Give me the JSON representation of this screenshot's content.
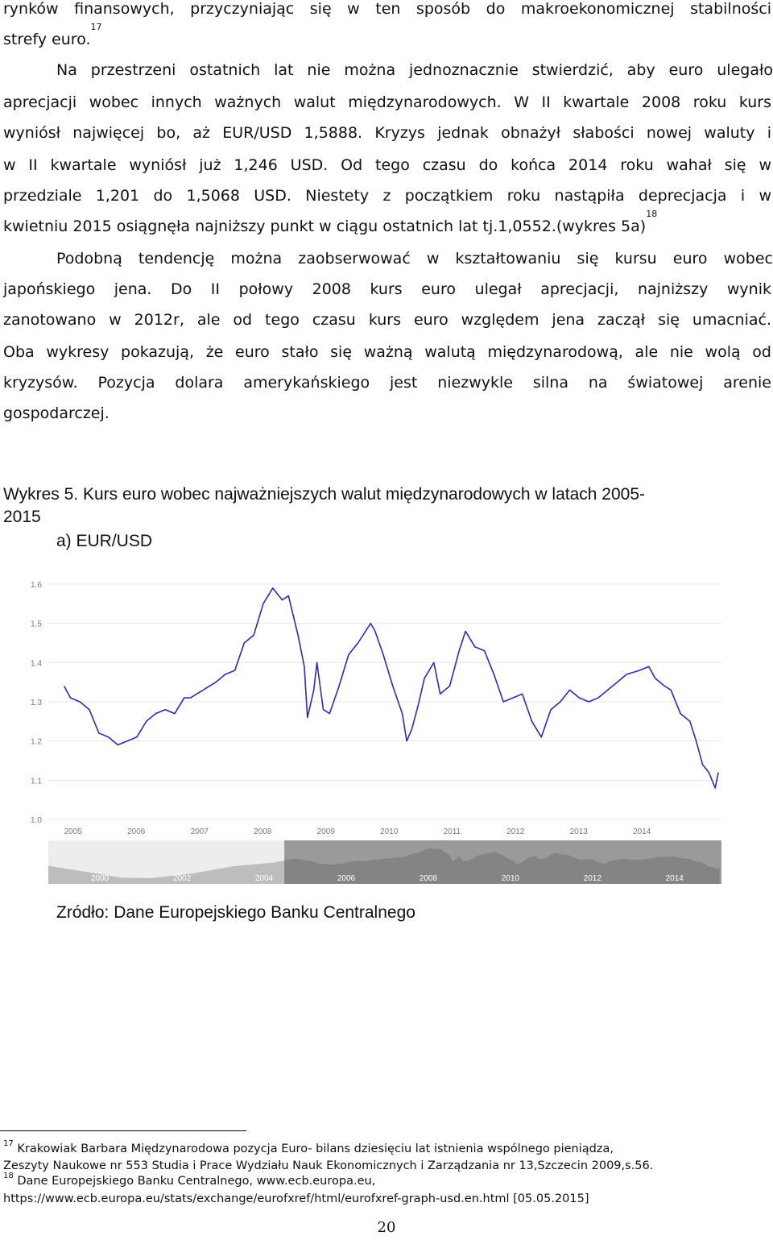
{
  "body": {
    "p1_l1": "rynków finansowych, przyczyniając się w ten sposób do makroekonomicznej stabilności",
    "p1_l2": "strefy euro.",
    "fnref17": "17",
    "p2_l1": "Na przestrzeni ostatnich lat nie można jednoznacznie stwierdzić, aby euro ulegało",
    "p2_l2": "aprecjacji wobec innych ważnych walut międzynarodowych. W II kwartale 2008 roku kurs",
    "p2_l3": "wyniósł najwięcej bo, aż EUR/USD 1,5888. Kryzys jednak obnażył słabości nowej waluty i",
    "p2_l4": "w II kwartale wyniósł  już 1,246 USD. Od tego czasu do końca 2014 roku wahał się w",
    "p2_l5": "przedziale 1,201 do 1,5068 USD. Niestety z początkiem roku nastąpiła deprecjacja i w",
    "p2_l6": "kwietniu 2015 osiągnęła najniższy punkt w ciągu ostatnich lat tj.1,0552.(wykres 5a)",
    "fnref18": "18",
    "p3_l1": "Podobną tendencję można zaobserwować w kształtowaniu się kursu euro wobec",
    "p3_l2": "japońskiego jena. Do II połowy 2008 kurs euro ulegał aprecjacji, najniższy wynik",
    "p3_l3": "zanotowano w 2012r, ale od tego czasu kurs euro względem jena zaczął się umacniać.",
    "p3_l4": "Oba wykresy pokazują, że euro stało się ważną walutą międzynarodową, ale nie wolą od",
    "p3_l5": "kryzysów. Pozycja dolara amerykańskiego jest niezwykle silna na światowej arenie",
    "p3_l6": "gospodarczej."
  },
  "figure": {
    "caption_l1": "Wykres 5. Kurs euro wobec najważniejszych walut międzynarodowych w latach 2005-",
    "caption_l2": "2015",
    "subtitle": "a) EUR/USD",
    "source": "Zródło: Dane Europejskiego Banku Centralnego"
  },
  "chart_data": {
    "type": "line",
    "title": "",
    "xlabel": "",
    "ylabel": "",
    "ylim": [
      1.0,
      1.6
    ],
    "y_ticks": [
      "1.0",
      "1.1",
      "1.2",
      "1.3",
      "1.4",
      "1.5",
      "1.6"
    ],
    "x_ticks": [
      "2005",
      "2006",
      "2007",
      "2008",
      "2009",
      "2010",
      "2011",
      "2012",
      "2013",
      "2014"
    ],
    "navigator_ticks": [
      "2000",
      "2002",
      "2004",
      "2006",
      "2008",
      "2010",
      "2012",
      "2014"
    ],
    "grid": true,
    "legend": "none",
    "line_color": "#2b2bb5",
    "series": [
      {
        "x": [
          2005.0,
          2005.1,
          2005.25,
          2005.4,
          2005.55,
          2005.7,
          2005.85,
          2006.0,
          2006.15,
          2006.3,
          2006.45,
          2006.6,
          2006.75,
          2006.9,
          2007.0,
          2007.2,
          2007.4,
          2007.55,
          2007.7,
          2007.85,
          2008.0,
          2008.15,
          2008.3,
          2008.45,
          2008.55,
          2008.7,
          2008.8,
          2008.85,
          2008.95,
          2009.0,
          2009.1,
          2009.2,
          2009.35,
          2009.5,
          2009.65,
          2009.85,
          2009.92,
          2010.05,
          2010.2,
          2010.35,
          2010.42,
          2010.5,
          2010.6,
          2010.7,
          2010.85,
          2010.95,
          2011.1,
          2011.25,
          2011.35,
          2011.5,
          2011.65,
          2011.8,
          2011.95,
          2012.1,
          2012.25,
          2012.4,
          2012.55,
          2012.7,
          2012.85,
          2013.0,
          2013.15,
          2013.3,
          2013.45,
          2013.6,
          2013.75,
          2013.9,
          2014.1,
          2014.25,
          2014.35,
          2014.5,
          2014.6,
          2014.75,
          2014.9,
          2015.0,
          2015.1,
          2015.2,
          2015.3,
          2015.35
        ],
        "values": [
          1.34,
          1.31,
          1.3,
          1.28,
          1.22,
          1.21,
          1.19,
          1.2,
          1.21,
          1.25,
          1.27,
          1.28,
          1.27,
          1.31,
          1.31,
          1.33,
          1.35,
          1.37,
          1.38,
          1.45,
          1.47,
          1.55,
          1.59,
          1.56,
          1.57,
          1.47,
          1.39,
          1.26,
          1.33,
          1.4,
          1.28,
          1.27,
          1.34,
          1.42,
          1.45,
          1.5,
          1.48,
          1.42,
          1.34,
          1.27,
          1.2,
          1.23,
          1.29,
          1.36,
          1.4,
          1.32,
          1.34,
          1.43,
          1.48,
          1.44,
          1.43,
          1.37,
          1.3,
          1.31,
          1.32,
          1.25,
          1.21,
          1.28,
          1.3,
          1.33,
          1.31,
          1.3,
          1.31,
          1.33,
          1.35,
          1.37,
          1.38,
          1.39,
          1.36,
          1.34,
          1.33,
          1.27,
          1.25,
          1.2,
          1.14,
          1.12,
          1.08,
          1.12
        ]
      }
    ]
  },
  "footnotes": {
    "fn17_num": "17",
    "fn17_l1": "Krakowiak Barbara  Międzynarodowa pozycja Euro- bilans dziesięciu lat istnienia wspólnego pieniądza,",
    "fn17_l2": "Zeszyty Naukowe nr 553 Studia i Prace Wydziału Nauk Ekonomicznych i Zarządzania nr 13,Szczecin  2009,s.56.",
    "fn18_num": "18",
    "fn18_l1": "Dane Europejskiego Banku Centralnego, www.ecb.europa.eu,",
    "fn18_l2": "https://www.ecb.europa.eu/stats/exchange/eurofxref/html/eurofxref-graph-usd.en.html [05.05.2015]"
  },
  "page_number": "20"
}
